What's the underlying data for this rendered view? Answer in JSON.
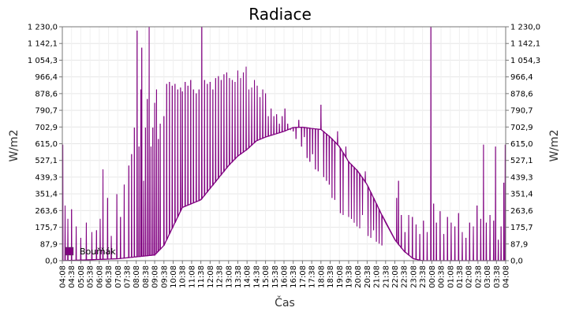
{
  "chart_data": {
    "type": "line",
    "title": "Radiace",
    "xlabel": "Čas",
    "ylabel": "W/m2",
    "ylabel_right": "W/m2",
    "ylim": [
      0,
      1230
    ],
    "yticks": [
      "0,0",
      "87,9",
      "175,7",
      "263,6",
      "351,4",
      "439,3",
      "527,1",
      "615,0",
      "702,9",
      "790,7",
      "878,6",
      "966,4",
      "1 054,3",
      "1 142,1",
      "1 230,0"
    ],
    "xticks": [
      "04:08",
      "04:38",
      "05:08",
      "05:38",
      "06:08",
      "06:38",
      "07:08",
      "07:38",
      "08:08",
      "08:38",
      "09:08",
      "09:38",
      "10:08",
      "10:38",
      "11:08",
      "11:38",
      "12:08",
      "12:38",
      "13:08",
      "13:38",
      "14:08",
      "14:38",
      "15:08",
      "15:38",
      "16:08",
      "16:38",
      "17:08",
      "17:38",
      "18:08",
      "18:38",
      "19:08",
      "19:38",
      "20:08",
      "20:38",
      "21:08",
      "21:38",
      "22:08",
      "22:38",
      "23:08",
      "23:38",
      "00:08",
      "00:38",
      "01:08",
      "01:38",
      "02:08",
      "02:38",
      "03:08",
      "03:38",
      "04:08"
    ],
    "grid": true,
    "legend_position": "bottom-left",
    "series": [
      {
        "name": "Bouřňák",
        "color": "#800080",
        "baseline": [
          [
            0,
            0
          ],
          [
            6,
            10
          ],
          [
            10,
            30
          ],
          [
            11,
            80
          ],
          [
            13,
            280
          ],
          [
            15,
            320
          ],
          [
            18,
            500
          ],
          [
            19,
            550
          ],
          [
            20,
            585
          ],
          [
            21,
            630
          ],
          [
            22,
            650
          ],
          [
            24,
            680
          ],
          [
            25,
            700
          ],
          [
            26,
            702
          ],
          [
            27,
            695
          ],
          [
            28,
            690
          ],
          [
            29,
            650
          ],
          [
            30,
            600
          ],
          [
            31,
            520
          ],
          [
            32,
            470
          ],
          [
            33,
            400
          ],
          [
            34,
            300
          ],
          [
            35,
            200
          ],
          [
            36,
            110
          ],
          [
            37,
            50
          ],
          [
            38,
            10
          ],
          [
            39,
            0
          ],
          [
            48,
            0
          ]
        ],
        "spikes": [
          [
            0.05,
            610
          ],
          [
            0.3,
            290
          ],
          [
            0.6,
            220
          ],
          [
            1.0,
            270
          ],
          [
            1.5,
            180
          ],
          [
            2.0,
            120
          ],
          [
            2.6,
            200
          ],
          [
            3.2,
            150
          ],
          [
            3.7,
            160
          ],
          [
            4.1,
            220
          ],
          [
            4.4,
            480
          ],
          [
            4.9,
            330
          ],
          [
            5.3,
            130
          ],
          [
            5.9,
            350
          ],
          [
            6.3,
            230
          ],
          [
            6.7,
            400
          ],
          [
            7.2,
            500
          ],
          [
            7.5,
            560
          ],
          [
            7.8,
            700
          ],
          [
            8.1,
            1210
          ],
          [
            8.3,
            600
          ],
          [
            8.5,
            900
          ],
          [
            8.6,
            1120
          ],
          [
            8.8,
            420
          ],
          [
            9.0,
            700
          ],
          [
            9.2,
            850
          ],
          [
            9.4,
            1235
          ],
          [
            9.6,
            600
          ],
          [
            9.8,
            700
          ],
          [
            10.0,
            830
          ],
          [
            10.2,
            900
          ],
          [
            10.4,
            640
          ],
          [
            10.6,
            720
          ],
          [
            11.0,
            760
          ],
          [
            11.3,
            930
          ],
          [
            11.6,
            940
          ],
          [
            11.9,
            920
          ],
          [
            12.2,
            930
          ],
          [
            12.5,
            900
          ],
          [
            12.8,
            910
          ],
          [
            13.0,
            890
          ],
          [
            13.3,
            940
          ],
          [
            13.6,
            920
          ],
          [
            13.9,
            950
          ],
          [
            14.2,
            900
          ],
          [
            14.5,
            880
          ],
          [
            14.8,
            900
          ],
          [
            15.1,
            1228
          ],
          [
            15.4,
            950
          ],
          [
            15.7,
            930
          ],
          [
            16.0,
            940
          ],
          [
            16.3,
            900
          ],
          [
            16.6,
            960
          ],
          [
            16.9,
            970
          ],
          [
            17.2,
            950
          ],
          [
            17.5,
            980
          ],
          [
            17.8,
            990
          ],
          [
            18.1,
            960
          ],
          [
            18.4,
            950
          ],
          [
            18.7,
            940
          ],
          [
            19.0,
            1000
          ],
          [
            19.3,
            960
          ],
          [
            19.6,
            990
          ],
          [
            19.9,
            1020
          ],
          [
            20.2,
            900
          ],
          [
            20.5,
            910
          ],
          [
            20.8,
            950
          ],
          [
            21.1,
            920
          ],
          [
            21.4,
            860
          ],
          [
            21.7,
            900
          ],
          [
            22.0,
            880
          ],
          [
            22.3,
            760
          ],
          [
            22.6,
            800
          ],
          [
            22.9,
            760
          ],
          [
            23.2,
            770
          ],
          [
            23.5,
            720
          ],
          [
            23.8,
            760
          ],
          [
            24.1,
            800
          ],
          [
            24.4,
            720
          ],
          [
            24.7,
            690
          ],
          [
            25.0,
            680
          ],
          [
            25.3,
            640
          ],
          [
            25.6,
            740
          ],
          [
            25.9,
            600
          ],
          [
            26.2,
            650
          ],
          [
            26.5,
            540
          ],
          [
            26.8,
            520
          ],
          [
            27.1,
            560
          ],
          [
            27.4,
            480
          ],
          [
            27.7,
            470
          ],
          [
            28.0,
            820
          ],
          [
            28.3,
            440
          ],
          [
            28.6,
            420
          ],
          [
            28.9,
            400
          ],
          [
            29.2,
            330
          ],
          [
            29.5,
            320
          ],
          [
            29.8,
            680
          ],
          [
            30.1,
            250
          ],
          [
            30.4,
            240
          ],
          [
            30.7,
            600
          ],
          [
            31.0,
            230
          ],
          [
            31.3,
            220
          ],
          [
            31.6,
            200
          ],
          [
            31.9,
            180
          ],
          [
            32.2,
            170
          ],
          [
            32.5,
            240
          ],
          [
            32.8,
            470
          ],
          [
            33.1,
            130
          ],
          [
            33.4,
            120
          ],
          [
            33.7,
            160
          ],
          [
            34.0,
            100
          ],
          [
            34.3,
            90
          ],
          [
            34.6,
            80
          ],
          [
            36.2,
            330
          ],
          [
            36.4,
            420
          ],
          [
            36.7,
            240
          ],
          [
            37.1,
            150
          ],
          [
            37.5,
            240
          ],
          [
            37.9,
            230
          ],
          [
            38.3,
            190
          ],
          [
            38.7,
            140
          ],
          [
            39.1,
            210
          ],
          [
            39.5,
            150
          ],
          [
            39.9,
            1228
          ],
          [
            40.2,
            300
          ],
          [
            40.5,
            200
          ],
          [
            40.9,
            260
          ],
          [
            41.3,
            140
          ],
          [
            41.7,
            230
          ],
          [
            42.1,
            200
          ],
          [
            42.5,
            180
          ],
          [
            42.9,
            250
          ],
          [
            43.3,
            150
          ],
          [
            43.7,
            120
          ],
          [
            44.1,
            200
          ],
          [
            44.5,
            180
          ],
          [
            44.9,
            290
          ],
          [
            45.3,
            220
          ],
          [
            45.6,
            610
          ],
          [
            45.9,
            200
          ],
          [
            46.3,
            240
          ],
          [
            46.7,
            210
          ],
          [
            46.9,
            600
          ],
          [
            47.2,
            110
          ],
          [
            47.5,
            180
          ],
          [
            47.8,
            410
          ],
          [
            47.95,
            610
          ]
        ]
      }
    ]
  }
}
